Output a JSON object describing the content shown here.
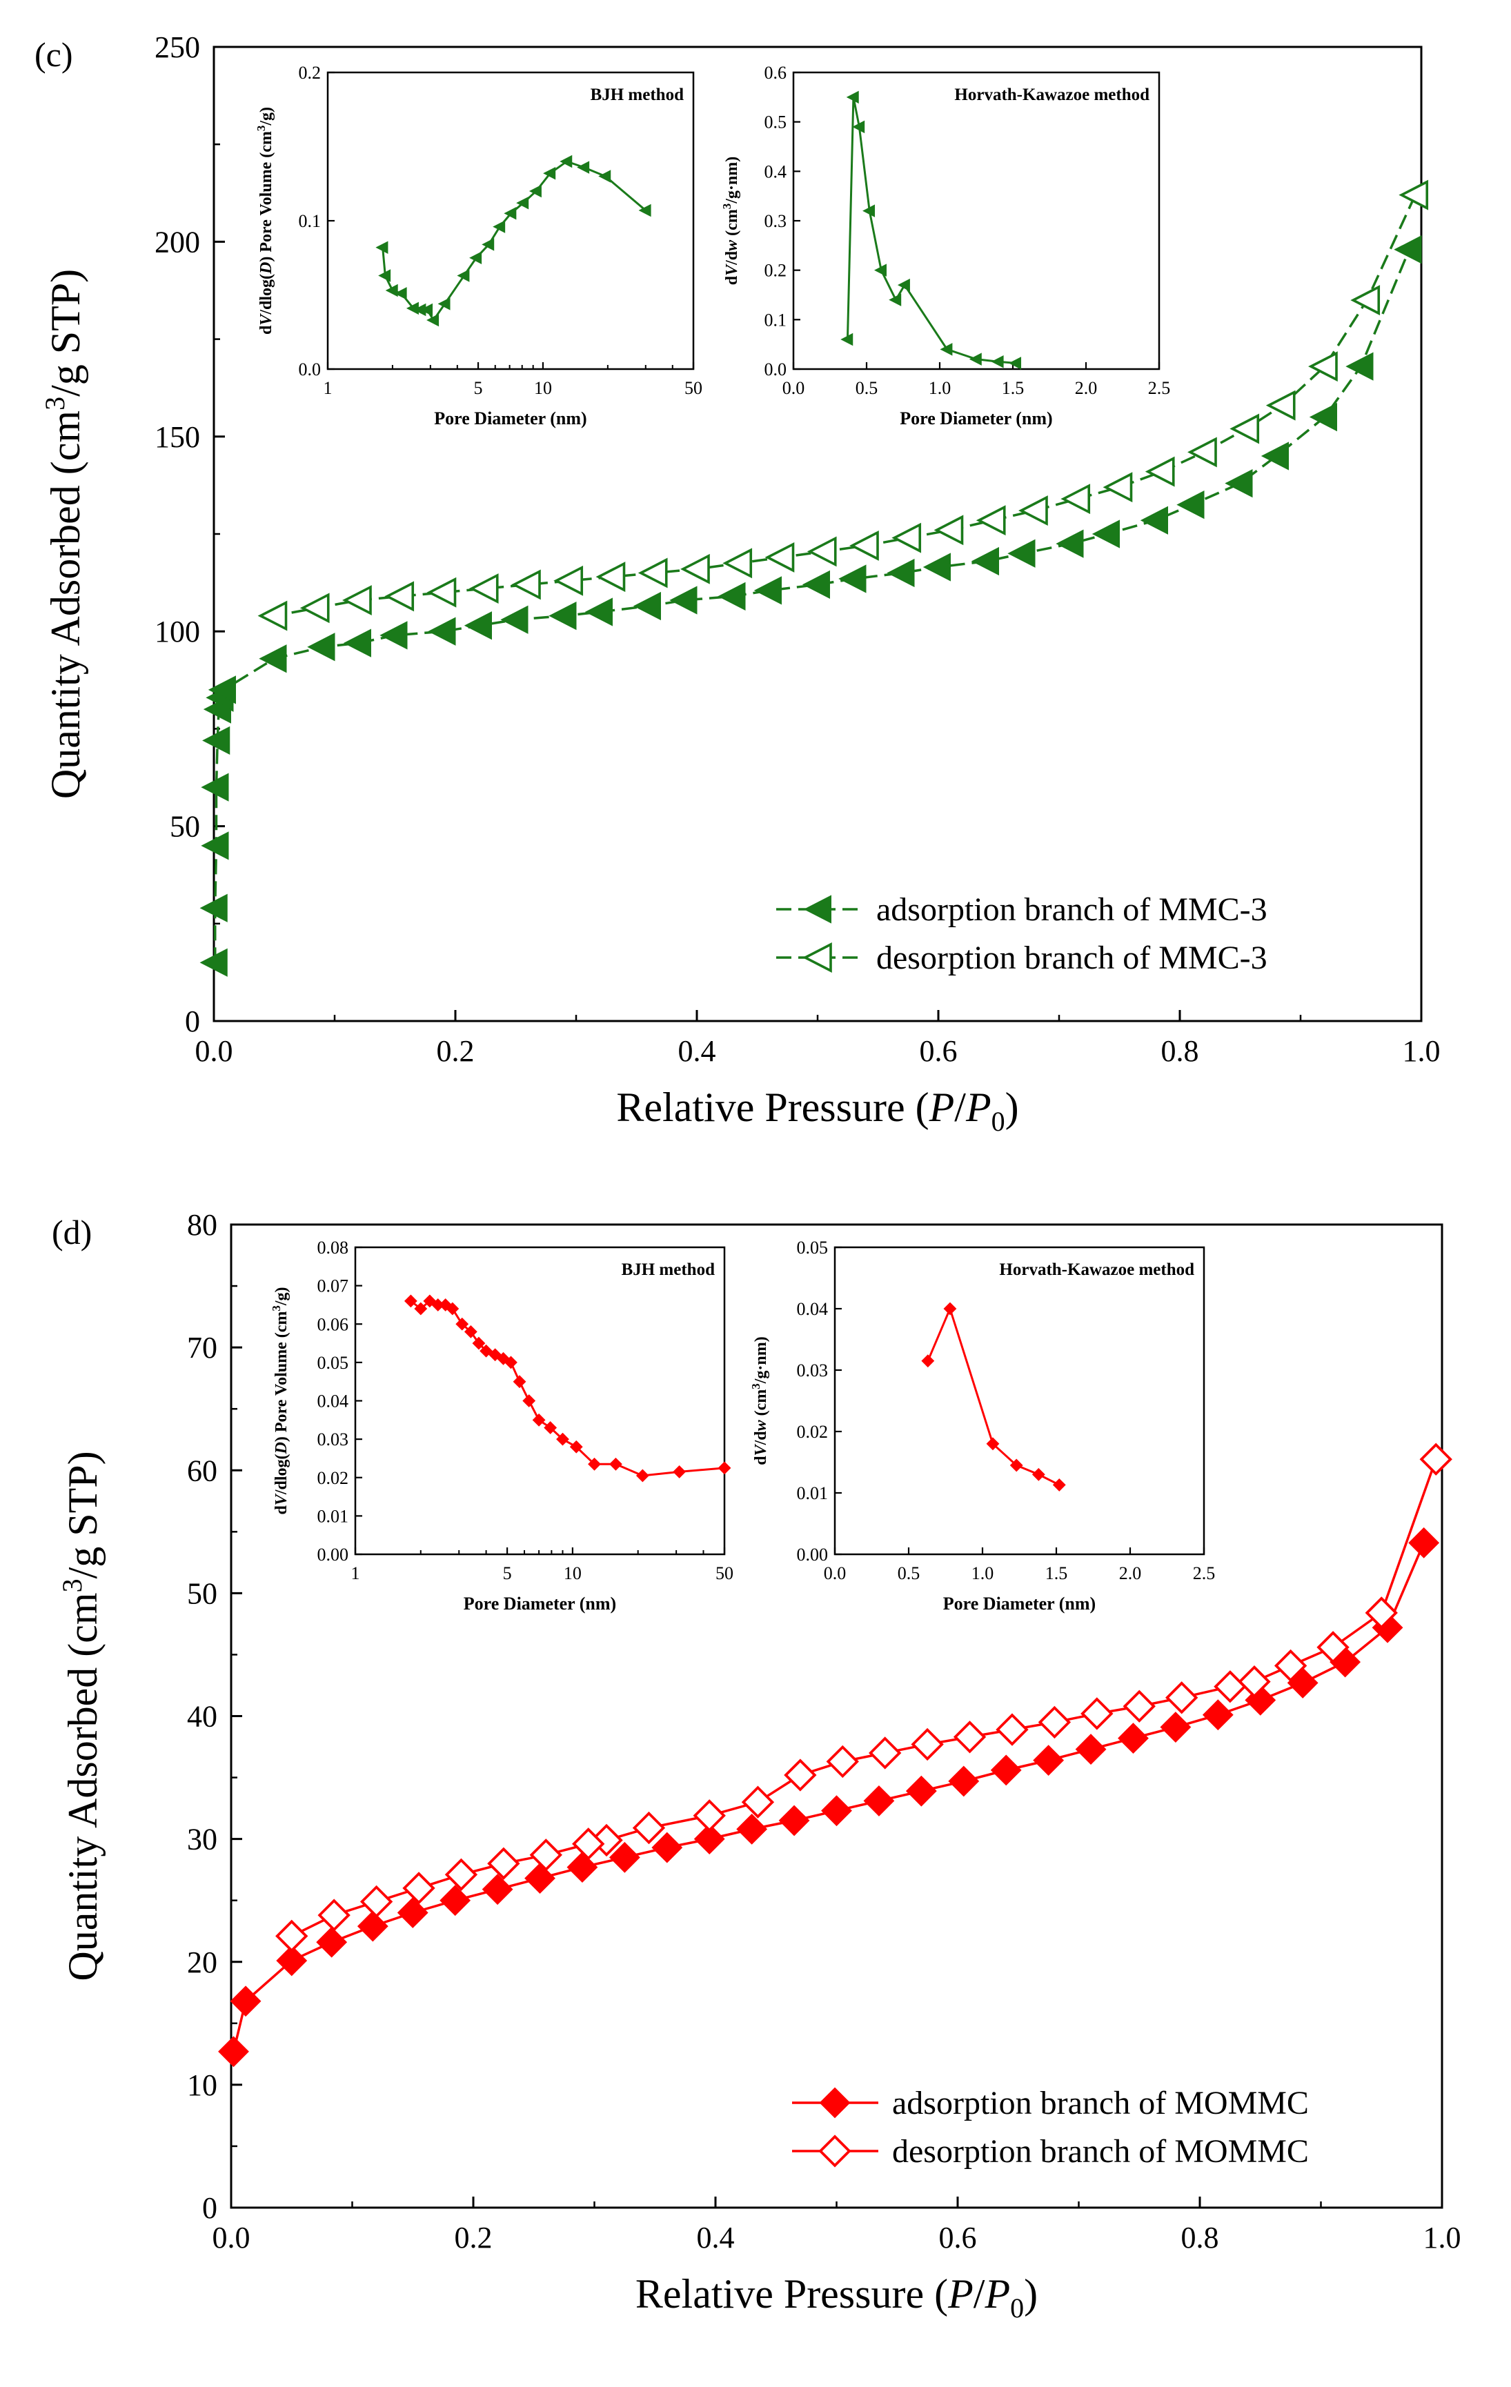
{
  "figure": {
    "background": "#ffffff"
  },
  "chart_data": [
    {
      "id": "c",
      "type": "scatter",
      "panel_label": "(c)",
      "xlabel_prefix": "Relative Pressure (",
      "xlabel_P": "P",
      "xlabel_slash": "/",
      "xlabel_P0": "P",
      "xlabel_sub": "0",
      "xlabel_suffix": ")",
      "ylabel_main": "Quantity Adsorbed (cm",
      "ylabel_sup": "3",
      "ylabel_tail": "/g STP)",
      "xlim": [
        0,
        1
      ],
      "ylim": [
        0,
        250
      ],
      "xticks": [
        0.0,
        0.2,
        0.4,
        0.6,
        0.8,
        1.0
      ],
      "xtick_labels": [
        "0.0",
        "0.2",
        "0.4",
        "0.6",
        "0.8",
        "1.0"
      ],
      "yticks": [
        0,
        50,
        100,
        150,
        200,
        250
      ],
      "ytick_labels": [
        "0",
        "50",
        "100",
        "150",
        "200",
        "250"
      ],
      "color": "#1a7a1a",
      "legend": [
        "adsorption branch of MMC-3",
        "desorption branch of MMC-3"
      ],
      "series": [
        {
          "name": "adsorption branch of MMC-3",
          "marker": "triangle-left",
          "fill": "filled",
          "x": [
            0.001,
            0.001,
            0.002,
            0.002,
            0.003,
            0.004,
            0.006,
            0.008,
            0.05,
            0.09,
            0.12,
            0.15,
            0.19,
            0.22,
            0.25,
            0.29,
            0.32,
            0.36,
            0.39,
            0.43,
            0.46,
            0.5,
            0.53,
            0.57,
            0.6,
            0.64,
            0.67,
            0.71,
            0.74,
            0.78,
            0.81,
            0.85,
            0.88,
            0.92,
            0.95,
            0.99
          ],
          "y": [
            15,
            29,
            45,
            60,
            72,
            80,
            83,
            85,
            93,
            96,
            97,
            99,
            100,
            101.5,
            103,
            104,
            105,
            106.5,
            108,
            109,
            110.5,
            112,
            113.5,
            115,
            116.5,
            118,
            120,
            122.5,
            125,
            128.5,
            132.5,
            138,
            145,
            155,
            168,
            198
          ]
        },
        {
          "name": "desorption branch of MMC-3",
          "marker": "triangle-left",
          "fill": "open",
          "x": [
            0.995,
            0.955,
            0.92,
            0.885,
            0.855,
            0.82,
            0.785,
            0.75,
            0.715,
            0.68,
            0.645,
            0.61,
            0.575,
            0.54,
            0.505,
            0.47,
            0.435,
            0.4,
            0.365,
            0.33,
            0.295,
            0.26,
            0.225,
            0.19,
            0.155,
            0.12,
            0.085,
            0.05
          ],
          "y": [
            212,
            185,
            168,
            158,
            152,
            146,
            141,
            137,
            134,
            131,
            128.5,
            126,
            124,
            122,
            120.5,
            119,
            117.5,
            116,
            115,
            114,
            113,
            112,
            111,
            110,
            109,
            108,
            106,
            104
          ]
        }
      ],
      "insets": [
        {
          "type": "line",
          "title": "BJH method",
          "xscale": "log",
          "xlim": [
            1,
            50
          ],
          "ylim": [
            0,
            0.2
          ],
          "xticks": [
            1,
            5,
            10,
            50
          ],
          "xtick_labels": [
            "1",
            "5",
            "10",
            "50"
          ],
          "yticks": [
            0,
            0.1,
            0.2
          ],
          "ytick_labels": [
            "0.0",
            "0.1",
            "0.2"
          ],
          "xlabel": "Pore Diameter  (nm)",
          "ylabel_pre": "d",
          "ylabel_V": "V",
          "ylabel_mid": "/dlog(",
          "ylabel_D": "D",
          "ylabel_post": ") Pore Volume (cm",
          "ylabel_sup": "3",
          "ylabel_tail": "/g)",
          "marker": "triangle-left",
          "x": [
            1.8,
            1.85,
            2.0,
            2.2,
            2.5,
            2.7,
            2.9,
            3.1,
            3.5,
            4.3,
            4.9,
            5.6,
            6.3,
            7.1,
            8.1,
            9.3,
            10.8,
            12.9,
            15.5,
            19.5,
            30
          ],
          "y": [
            0.082,
            0.063,
            0.053,
            0.051,
            0.041,
            0.04,
            0.04,
            0.033,
            0.044,
            0.063,
            0.075,
            0.084,
            0.096,
            0.105,
            0.112,
            0.12,
            0.132,
            0.14,
            0.136,
            0.13,
            0.107
          ]
        },
        {
          "type": "line",
          "title": "Horvath-Kawazoe method",
          "xscale": "linear",
          "xlim": [
            0,
            2.5
          ],
          "ylim": [
            0,
            0.6
          ],
          "xticks": [
            0,
            0.5,
            1.0,
            1.5,
            2.0,
            2.5
          ],
          "xtick_labels": [
            "0.0",
            "0.5",
            "1.0",
            "1.5",
            "2.0",
            "2.5"
          ],
          "yticks": [
            0,
            0.1,
            0.2,
            0.3,
            0.4,
            0.5,
            0.6
          ],
          "ytick_labels": [
            "0.0",
            "0.1",
            "0.2",
            "0.3",
            "0.4",
            "0.5",
            "0.6"
          ],
          "xlabel": "Pore Diameter  (nm)",
          "ylabel_pre": "d",
          "ylabel_V": "V",
          "ylabel_mid": "/d",
          "ylabel_D": "w",
          "ylabel_post": " (cm",
          "ylabel_sup": "3",
          "ylabel_tail": "/g·nm)",
          "marker": "triangle-left",
          "x": [
            0.37,
            0.41,
            0.45,
            0.52,
            0.6,
            0.7,
            0.76,
            1.05,
            1.25,
            1.4,
            1.52
          ],
          "y": [
            0.06,
            0.55,
            0.49,
            0.32,
            0.2,
            0.14,
            0.17,
            0.04,
            0.02,
            0.015,
            0.012
          ]
        }
      ]
    },
    {
      "id": "d",
      "type": "scatter",
      "panel_label": "(d)",
      "xlabel_prefix": "Relative Pressure (",
      "xlabel_P": "P",
      "xlabel_slash": "/",
      "xlabel_P0": "P",
      "xlabel_sub": "0",
      "xlabel_suffix": ")",
      "ylabel_main": "Quantity Adsorbed (cm",
      "ylabel_sup": "3",
      "ylabel_tail": "/g STP)",
      "xlim": [
        0,
        1
      ],
      "ylim": [
        0,
        80
      ],
      "xticks": [
        0.0,
        0.2,
        0.4,
        0.6,
        0.8,
        1.0
      ],
      "xtick_labels": [
        "0.0",
        "0.2",
        "0.4",
        "0.6",
        "0.8",
        "1.0"
      ],
      "yticks": [
        0,
        10,
        20,
        30,
        40,
        50,
        60,
        70,
        80
      ],
      "ytick_labels": [
        "0",
        "10",
        "20",
        "30",
        "40",
        "50",
        "60",
        "70",
        "80"
      ],
      "color": "#ff0000",
      "legend": [
        "adsorption branch of MOMMC",
        "desorption branch of MOMMC"
      ],
      "series": [
        {
          "name": "adsorption branch of MOMMC",
          "marker": "diamond",
          "fill": "filled",
          "x": [
            0.002,
            0.012,
            0.05,
            0.083,
            0.117,
            0.15,
            0.185,
            0.22,
            0.255,
            0.29,
            0.325,
            0.36,
            0.395,
            0.43,
            0.465,
            0.5,
            0.535,
            0.57,
            0.605,
            0.64,
            0.675,
            0.71,
            0.745,
            0.78,
            0.815,
            0.85,
            0.885,
            0.92,
            0.955,
            0.985
          ],
          "y": [
            12.7,
            16.8,
            20.1,
            21.6,
            22.9,
            24,
            25,
            25.9,
            26.8,
            27.7,
            28.5,
            29.3,
            30,
            30.8,
            31.5,
            32.3,
            33.1,
            33.9,
            34.7,
            35.6,
            36.4,
            37.3,
            38.2,
            39.1,
            40.1,
            41.3,
            42.7,
            44.4,
            47.2,
            54.1
          ]
        },
        {
          "name": "desorption branch of MOMMC",
          "marker": "diamond",
          "fill": "open",
          "x": [
            0.995,
            0.95,
            0.91,
            0.875,
            0.845,
            0.825,
            0.785,
            0.75,
            0.715,
            0.68,
            0.645,
            0.61,
            0.575,
            0.54,
            0.505,
            0.47,
            0.435,
            0.395,
            0.345,
            0.31,
            0.295,
            0.26,
            0.225,
            0.19,
            0.155,
            0.12,
            0.085,
            0.05
          ],
          "y": [
            60.9,
            48.4,
            45.6,
            44.1,
            42.8,
            42.4,
            41.5,
            40.8,
            40.2,
            39.5,
            38.9,
            38.3,
            37.7,
            37.0,
            36.3,
            35.2,
            33.0,
            31.9,
            30.9,
            29.9,
            29.6,
            28.7,
            28.0,
            27.1,
            26.0,
            24.9,
            23.8,
            22.1
          ]
        }
      ],
      "insets": [
        {
          "type": "line",
          "title": "BJH method",
          "xscale": "log",
          "xlim": [
            1,
            50
          ],
          "ylim": [
            0,
            0.08
          ],
          "xticks": [
            1,
            5,
            10,
            50
          ],
          "xtick_labels": [
            "1",
            "5",
            "10",
            "50"
          ],
          "yticks": [
            0,
            0.01,
            0.02,
            0.03,
            0.04,
            0.05,
            0.06,
            0.07,
            0.08
          ],
          "ytick_labels": [
            "0.00",
            "0.01",
            "0.02",
            "0.03",
            "0.04",
            "0.05",
            "0.06",
            "0.07",
            "0.08"
          ],
          "xlabel": "Pore Diameter  (nm)",
          "ylabel_pre": "d",
          "ylabel_V": "V",
          "ylabel_mid": "/dlog(",
          "ylabel_D": "D",
          "ylabel_post": ") Pore Volume (cm",
          "ylabel_sup": "3",
          "ylabel_tail": "/g)",
          "marker": "diamond",
          "x": [
            1.8,
            2.0,
            2.2,
            2.4,
            2.6,
            2.8,
            3.1,
            3.4,
            3.7,
            4.0,
            4.4,
            4.8,
            5.2,
            5.7,
            6.3,
            7.0,
            7.9,
            9.0,
            10.4,
            12.6,
            15.8,
            21,
            31,
            50
          ],
          "y": [
            0.066,
            0.064,
            0.066,
            0.065,
            0.065,
            0.064,
            0.06,
            0.058,
            0.055,
            0.053,
            0.052,
            0.051,
            0.05,
            0.045,
            0.04,
            0.035,
            0.033,
            0.03,
            0.028,
            0.0235,
            0.0235,
            0.0205,
            0.0215,
            0.0225
          ]
        },
        {
          "type": "line",
          "title": "Horvath-Kawazoe method",
          "xscale": "linear",
          "xlim": [
            0,
            2.5
          ],
          "ylim": [
            0,
            0.05
          ],
          "xticks": [
            0,
            0.5,
            1.0,
            1.5,
            2.0,
            2.5
          ],
          "xtick_labels": [
            "0.0",
            "0.5",
            "1.0",
            "1.5",
            "2.0",
            "2.5"
          ],
          "yticks": [
            0,
            0.01,
            0.02,
            0.03,
            0.04,
            0.05
          ],
          "ytick_labels": [
            "0.00",
            "0.01",
            "0.02",
            "0.03",
            "0.04",
            "0.05"
          ],
          "xlabel": "Pore Diameter  (nm)",
          "ylabel_pre": "d",
          "ylabel_V": "V",
          "ylabel_mid": "/d",
          "ylabel_D": "w",
          "ylabel_post": " (cm",
          "ylabel_sup": "3",
          "ylabel_tail": "/g·nm)",
          "marker": "diamond",
          "x": [
            0.63,
            0.78,
            1.07,
            1.23,
            1.38,
            1.52
          ],
          "y": [
            0.0315,
            0.04,
            0.018,
            0.0145,
            0.013,
            0.0113
          ]
        }
      ]
    }
  ]
}
